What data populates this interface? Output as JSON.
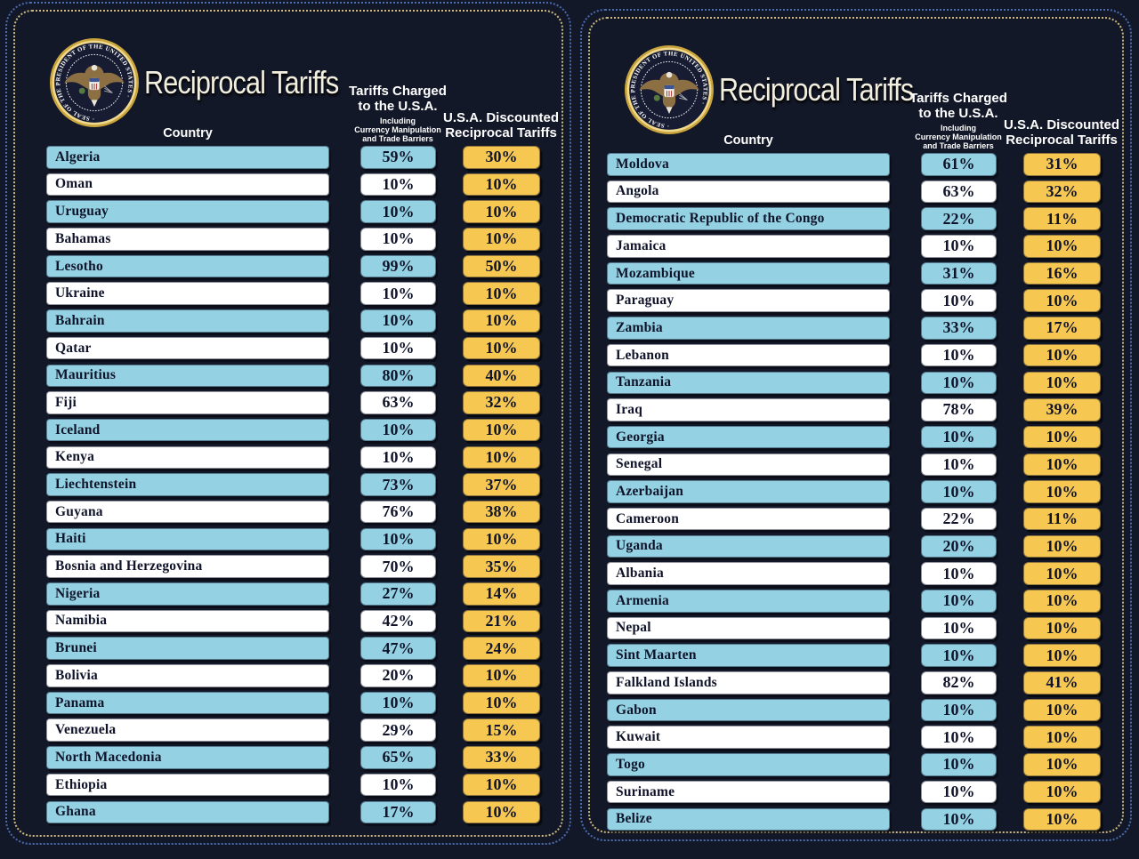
{
  "seal_text": "· SEAL OF THE PRESIDENT OF THE UNITED STATES ·",
  "colors": {
    "background": "#131828",
    "row_blue": "#94d2e3",
    "row_white": "#ffffff",
    "cell_gold": "#f6c751",
    "border_blue": "#4a6cb0",
    "border_gold": "#cdb87e",
    "title_color": "#f3efe0",
    "text_dark": "#10142a",
    "header_text": "#ffffff"
  },
  "chart_data": [
    {
      "type": "table",
      "title": "Reciprocal Tariffs",
      "columns": {
        "country": "Country",
        "charged_lines": [
          "Tariffs Charged",
          "to the U.S.A."
        ],
        "charged_sub_lines": [
          "Including",
          "Currency Manipulation",
          "and Trade Barriers"
        ],
        "discounted_lines": [
          "U.S.A. Discounted",
          "Reciprocal Tariffs"
        ]
      },
      "rows": [
        {
          "country": "Algeria",
          "charged_pct": 59,
          "discounted_pct": 30
        },
        {
          "country": "Oman",
          "charged_pct": 10,
          "discounted_pct": 10
        },
        {
          "country": "Uruguay",
          "charged_pct": 10,
          "discounted_pct": 10
        },
        {
          "country": "Bahamas",
          "charged_pct": 10,
          "discounted_pct": 10
        },
        {
          "country": "Lesotho",
          "charged_pct": 99,
          "discounted_pct": 50
        },
        {
          "country": "Ukraine",
          "charged_pct": 10,
          "discounted_pct": 10
        },
        {
          "country": "Bahrain",
          "charged_pct": 10,
          "discounted_pct": 10
        },
        {
          "country": "Qatar",
          "charged_pct": 10,
          "discounted_pct": 10
        },
        {
          "country": "Mauritius",
          "charged_pct": 80,
          "discounted_pct": 40
        },
        {
          "country": "Fiji",
          "charged_pct": 63,
          "discounted_pct": 32
        },
        {
          "country": "Iceland",
          "charged_pct": 10,
          "discounted_pct": 10
        },
        {
          "country": "Kenya",
          "charged_pct": 10,
          "discounted_pct": 10
        },
        {
          "country": "Liechtenstein",
          "charged_pct": 73,
          "discounted_pct": 37
        },
        {
          "country": "Guyana",
          "charged_pct": 76,
          "discounted_pct": 38
        },
        {
          "country": "Haiti",
          "charged_pct": 10,
          "discounted_pct": 10
        },
        {
          "country": "Bosnia and Herzegovina",
          "charged_pct": 70,
          "discounted_pct": 35
        },
        {
          "country": "Nigeria",
          "charged_pct": 27,
          "discounted_pct": 14
        },
        {
          "country": "Namibia",
          "charged_pct": 42,
          "discounted_pct": 21
        },
        {
          "country": "Brunei",
          "charged_pct": 47,
          "discounted_pct": 24
        },
        {
          "country": "Bolivia",
          "charged_pct": 20,
          "discounted_pct": 10
        },
        {
          "country": "Panama",
          "charged_pct": 10,
          "discounted_pct": 10
        },
        {
          "country": "Venezuela",
          "charged_pct": 29,
          "discounted_pct": 15
        },
        {
          "country": "North Macedonia",
          "charged_pct": 65,
          "discounted_pct": 33
        },
        {
          "country": "Ethiopia",
          "charged_pct": 10,
          "discounted_pct": 10
        },
        {
          "country": "Ghana",
          "charged_pct": 17,
          "discounted_pct": 10
        }
      ]
    },
    {
      "type": "table",
      "title": "Reciprocal Tariffs",
      "columns": {
        "country": "Country",
        "charged_lines": [
          "Tariffs Charged",
          "to the U.S.A."
        ],
        "charged_sub_lines": [
          "Including",
          "Currency Manipulation",
          "and Trade Barriers"
        ],
        "discounted_lines": [
          "U.S.A. Discounted",
          "Reciprocal Tariffs"
        ]
      },
      "rows": [
        {
          "country": "Moldova",
          "charged_pct": 61,
          "discounted_pct": 31
        },
        {
          "country": "Angola",
          "charged_pct": 63,
          "discounted_pct": 32
        },
        {
          "country": "Democratic Republic of the Congo",
          "charged_pct": 22,
          "discounted_pct": 11
        },
        {
          "country": "Jamaica",
          "charged_pct": 10,
          "discounted_pct": 10
        },
        {
          "country": "Mozambique",
          "charged_pct": 31,
          "discounted_pct": 16
        },
        {
          "country": "Paraguay",
          "charged_pct": 10,
          "discounted_pct": 10
        },
        {
          "country": "Zambia",
          "charged_pct": 33,
          "discounted_pct": 17
        },
        {
          "country": "Lebanon",
          "charged_pct": 10,
          "discounted_pct": 10
        },
        {
          "country": "Tanzania",
          "charged_pct": 10,
          "discounted_pct": 10
        },
        {
          "country": "Iraq",
          "charged_pct": 78,
          "discounted_pct": 39
        },
        {
          "country": "Georgia",
          "charged_pct": 10,
          "discounted_pct": 10
        },
        {
          "country": "Senegal",
          "charged_pct": 10,
          "discounted_pct": 10
        },
        {
          "country": "Azerbaijan",
          "charged_pct": 10,
          "discounted_pct": 10
        },
        {
          "country": "Cameroon",
          "charged_pct": 22,
          "discounted_pct": 11
        },
        {
          "country": "Uganda",
          "charged_pct": 20,
          "discounted_pct": 10
        },
        {
          "country": "Albania",
          "charged_pct": 10,
          "discounted_pct": 10
        },
        {
          "country": "Armenia",
          "charged_pct": 10,
          "discounted_pct": 10
        },
        {
          "country": "Nepal",
          "charged_pct": 10,
          "discounted_pct": 10
        },
        {
          "country": "Sint Maarten",
          "charged_pct": 10,
          "discounted_pct": 10
        },
        {
          "country": "Falkland Islands",
          "charged_pct": 82,
          "discounted_pct": 41
        },
        {
          "country": "Gabon",
          "charged_pct": 10,
          "discounted_pct": 10
        },
        {
          "country": "Kuwait",
          "charged_pct": 10,
          "discounted_pct": 10
        },
        {
          "country": "Togo",
          "charged_pct": 10,
          "discounted_pct": 10
        },
        {
          "country": "Suriname",
          "charged_pct": 10,
          "discounted_pct": 10
        },
        {
          "country": "Belize",
          "charged_pct": 10,
          "discounted_pct": 10
        }
      ]
    }
  ]
}
